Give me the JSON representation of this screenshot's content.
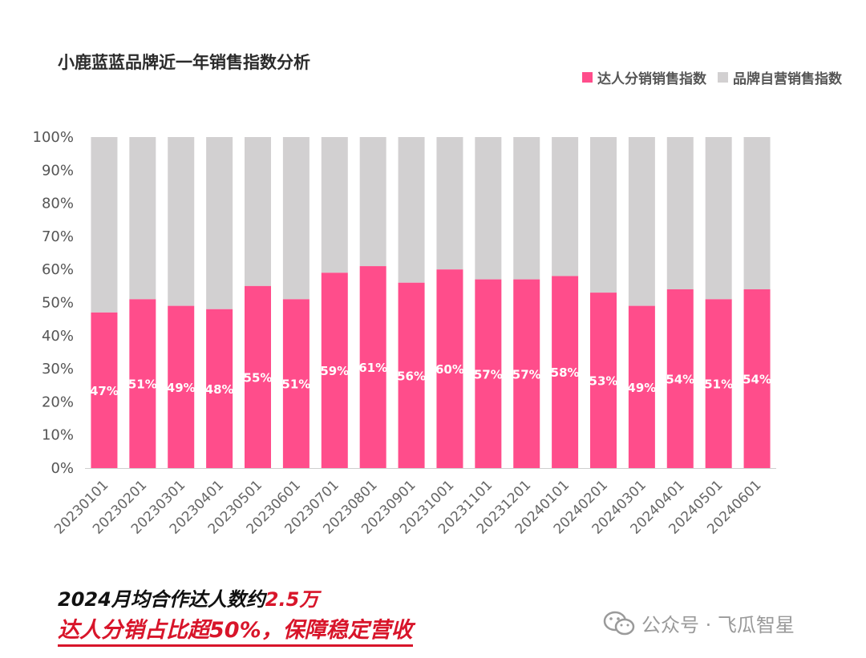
{
  "title": "小鹿蓝蓝品牌近一年销售指数分析",
  "legend": {
    "series1": "达人分销销售指数",
    "series2": "品牌自营销售指数"
  },
  "colors": {
    "series1": "#ff4d8b",
    "series2": "#d2d0d1",
    "caption_red": "#d8152a"
  },
  "chart_data": {
    "type": "bar",
    "stacked": true,
    "title": "小鹿蓝蓝品牌近一年销售指数分析",
    "categories": [
      "20230101",
      "20230201",
      "20230301",
      "20230401",
      "20230501",
      "20230601",
      "20230701",
      "20230801",
      "20230901",
      "20231001",
      "20231101",
      "20231201",
      "20240101",
      "20240201",
      "20240301",
      "20240401",
      "20240501",
      "20240601"
    ],
    "series": [
      {
        "name": "达人分销销售指数",
        "values": [
          47,
          51,
          49,
          48,
          55,
          51,
          59,
          61,
          56,
          60,
          57,
          57,
          58,
          53,
          49,
          54,
          51,
          54
        ]
      },
      {
        "name": "品牌自营销售指数",
        "values": [
          53,
          49,
          51,
          52,
          45,
          49,
          41,
          39,
          44,
          40,
          43,
          43,
          42,
          47,
          51,
          46,
          49,
          46
        ]
      }
    ],
    "data_labels": [
      "47%",
      "51%",
      "49%",
      "48%",
      "55%",
      "51%",
      "59%",
      "61%",
      "56%",
      "60%",
      "57%",
      "57%",
      "58%",
      "53%",
      "49%",
      "54%",
      "51%",
      "54%"
    ],
    "yticks": [
      "0%",
      "10%",
      "20%",
      "30%",
      "40%",
      "50%",
      "60%",
      "70%",
      "80%",
      "90%",
      "100%"
    ],
    "ylim": [
      0,
      100
    ],
    "legend_position": "top-right",
    "grid": false
  },
  "caption": {
    "line1_prefix": "2024月均合作达人数约",
    "line1_highlight": "2.5万",
    "line2": "达人分销占比超50%，保障稳定营收"
  },
  "watermark": {
    "text": "公众号 · 飞瓜智星",
    "icon": "wechat-icon"
  }
}
